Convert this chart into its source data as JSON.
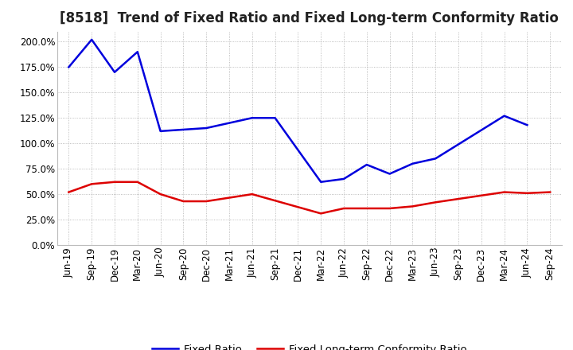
{
  "title": "[8518]  Trend of Fixed Ratio and Fixed Long-term Conformity Ratio",
  "x_labels": [
    "Jun-19",
    "Sep-19",
    "Dec-19",
    "Mar-20",
    "Jun-20",
    "Sep-20",
    "Dec-20",
    "Mar-21",
    "Jun-21",
    "Sep-21",
    "Dec-21",
    "Mar-22",
    "Jun-22",
    "Sep-22",
    "Dec-22",
    "Mar-23",
    "Jun-23",
    "Sep-23",
    "Dec-23",
    "Mar-24",
    "Jun-24",
    "Sep-24"
  ],
  "blue_color": "#0000dd",
  "red_color": "#dd0000",
  "bg_color": "#ffffff",
  "plot_bg_color": "#ffffff",
  "grid_color": "#aaaaaa",
  "ylim": [
    0,
    210
  ],
  "yticks": [
    0,
    25,
    50,
    75,
    100,
    125,
    150,
    175,
    200
  ],
  "legend_labels": [
    "Fixed Ratio",
    "Fixed Long-term Conformity Ratio"
  ],
  "title_fontsize": 12,
  "axis_fontsize": 8.5,
  "legend_fontsize": 9.5,
  "fixed_ratio_x_idx": [
    0,
    1,
    2,
    3,
    4,
    6,
    8,
    9,
    11,
    12,
    13,
    14,
    15,
    16,
    19,
    20
  ],
  "fixed_ratio_y": [
    175,
    202,
    170,
    190,
    112,
    115,
    125,
    125,
    62,
    65,
    79,
    70,
    80,
    85,
    127,
    118
  ],
  "fixed_lt_ratio_x_idx": [
    0,
    1,
    2,
    3,
    4,
    5,
    6,
    8,
    11,
    12,
    13,
    14,
    15,
    16,
    19,
    20,
    21
  ],
  "fixed_lt_ratio_y": [
    52,
    60,
    62,
    62,
    50,
    43,
    43,
    50,
    31,
    36,
    36,
    36,
    38,
    42,
    52,
    51,
    52
  ]
}
